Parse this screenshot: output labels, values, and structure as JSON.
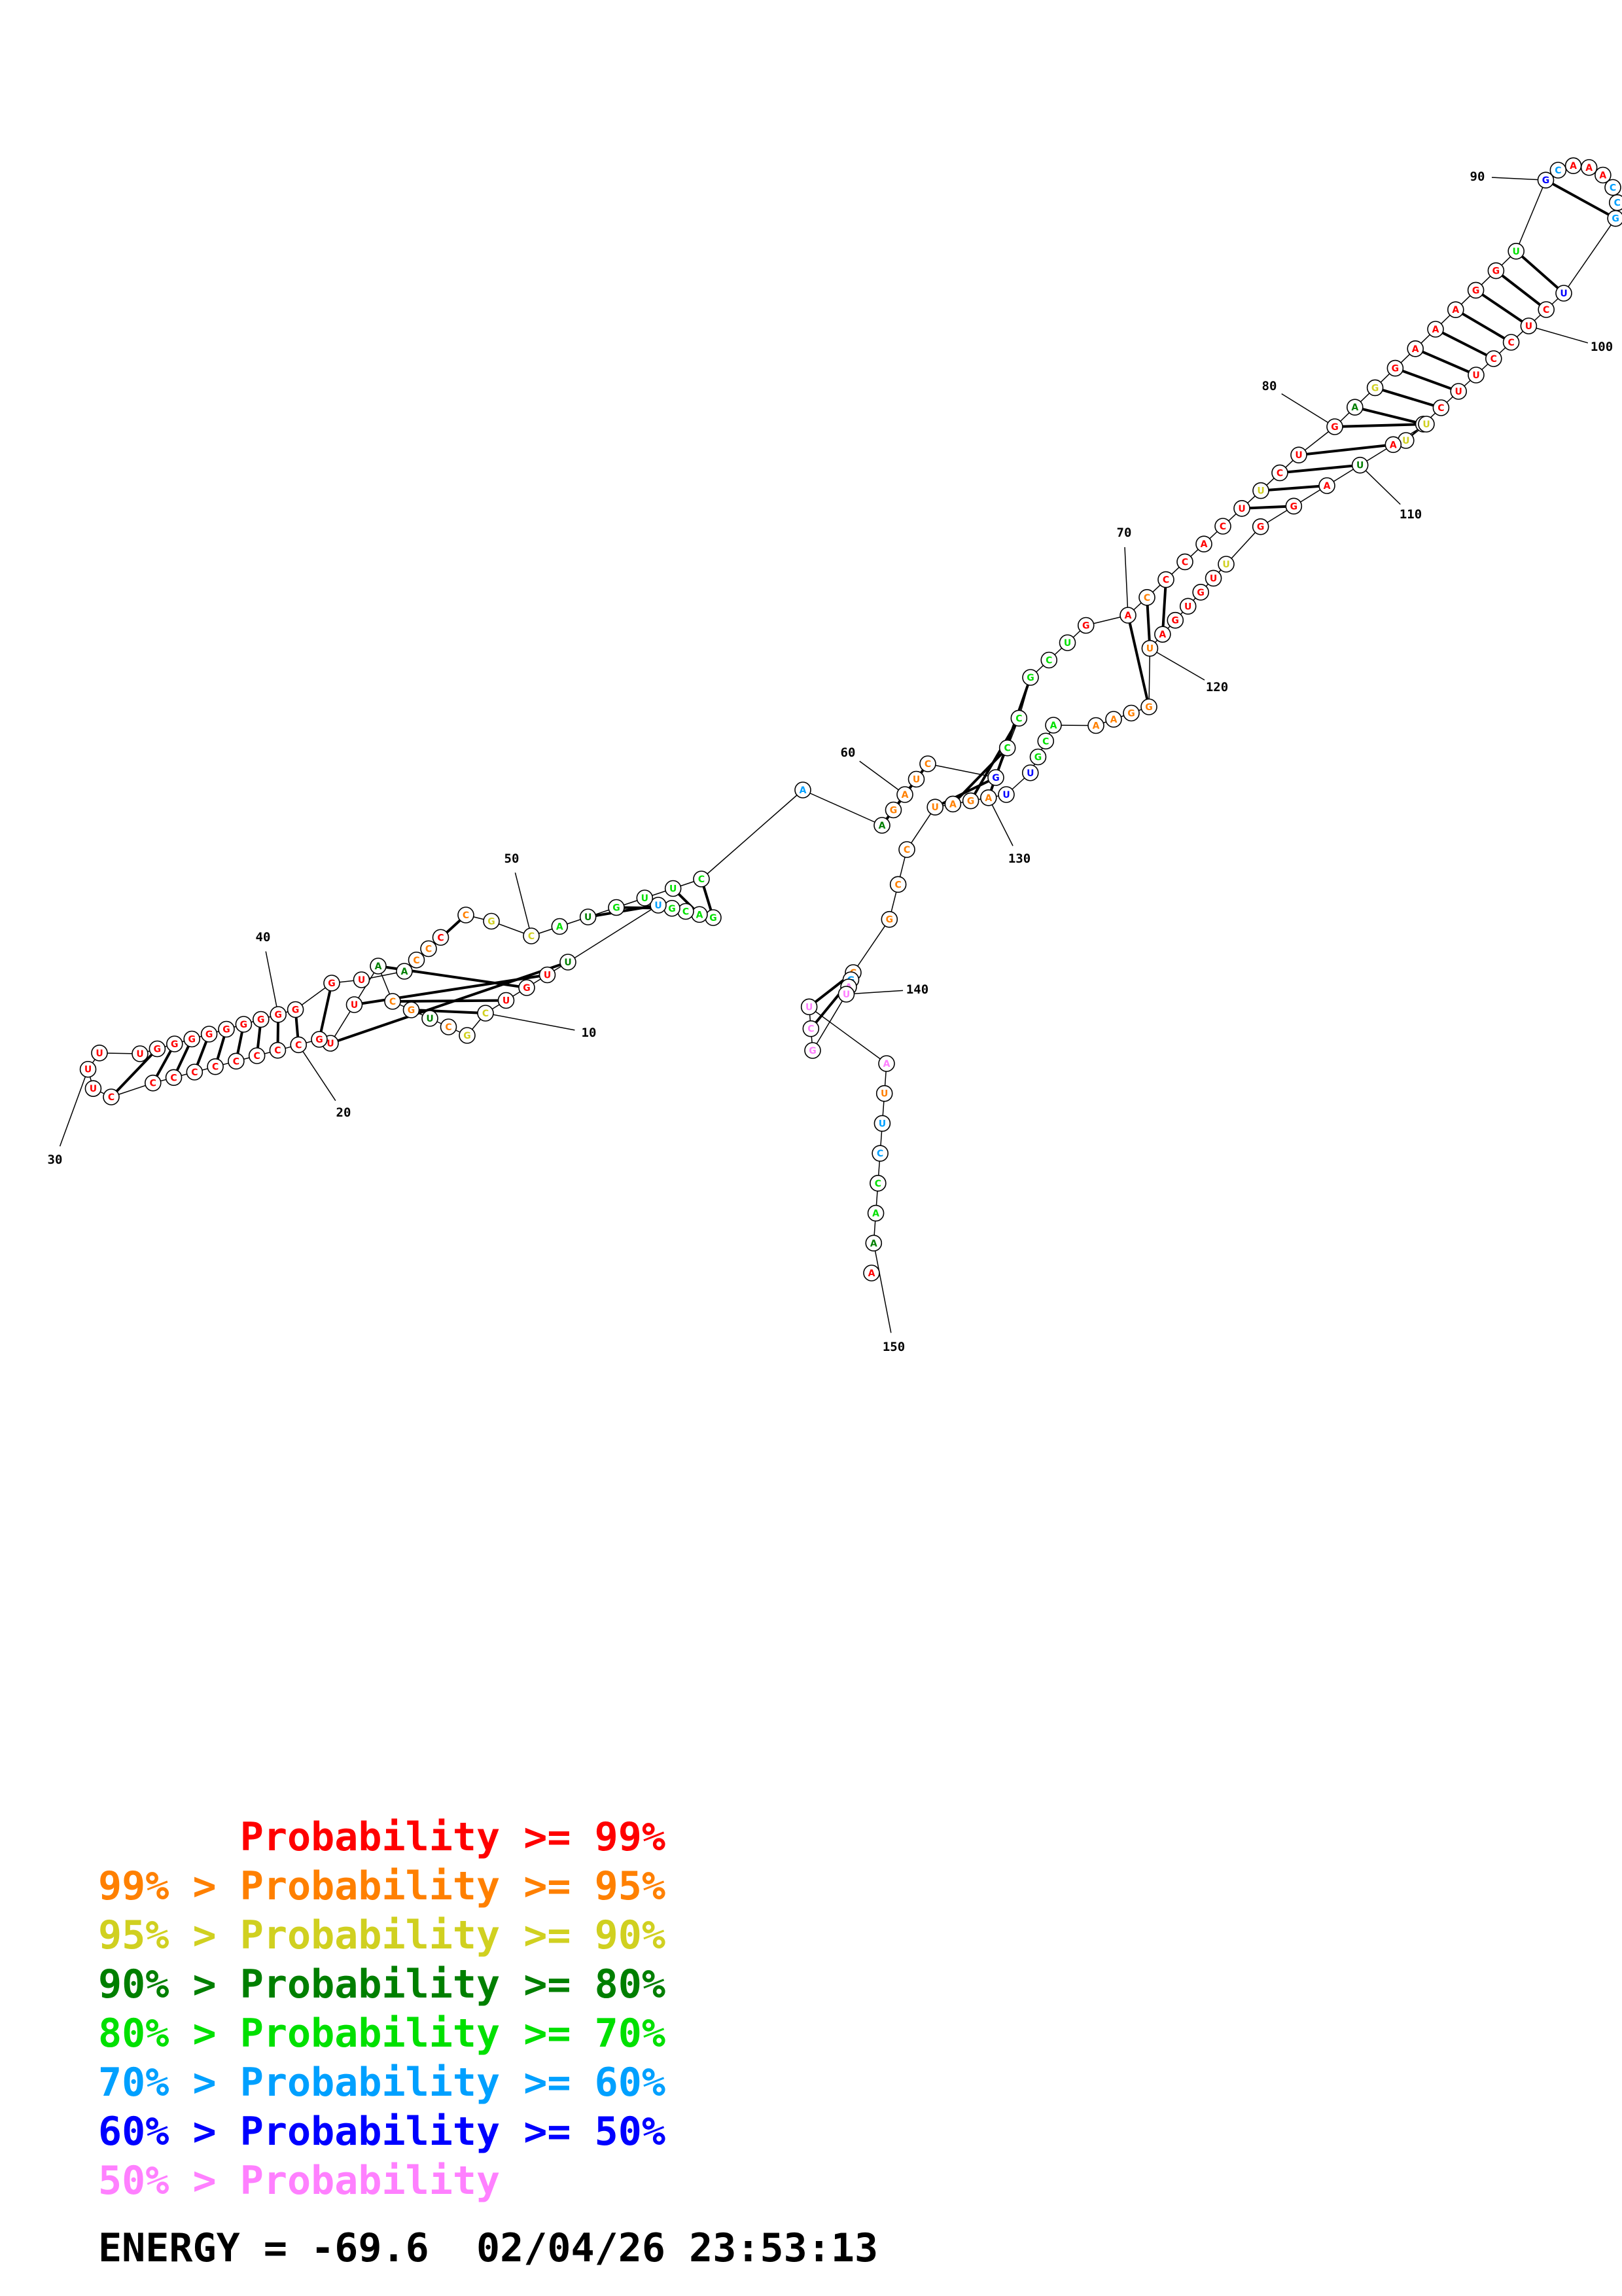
{
  "colors": {
    "p99": "#ff0000",
    "p95": "#ff8000",
    "p90": "#d0d020",
    "p80": "#007f00",
    "p70": "#00e000",
    "p60": "#00a0ff",
    "p50": "#0000ff",
    "plow": "#ff80ff"
  },
  "legend": [
    {
      "prefix": "",
      "label": "Probability",
      "suffix": ">= 99%",
      "color_key": "p99"
    },
    {
      "prefix": "99% >",
      "label": "Probability",
      "suffix": ">= 95%",
      "color_key": "p95"
    },
    {
      "prefix": "95% >",
      "label": "Probability",
      "suffix": ">= 90%",
      "color_key": "p90"
    },
    {
      "prefix": "90% >",
      "label": "Probability",
      "suffix": ">= 80%",
      "color_key": "p80"
    },
    {
      "prefix": "80% >",
      "label": "Probability",
      "suffix": ">= 70%",
      "color_key": "p70"
    },
    {
      "prefix": "70% >",
      "label": "Probability",
      "suffix": ">= 60%",
      "color_key": "p60"
    },
    {
      "prefix": "60% >",
      "label": "Probability",
      "suffix": ">= 50%",
      "color_key": "p50"
    },
    {
      "prefix": "50% >",
      "label": "Probability",
      "suffix": "",
      "color_key": "plow"
    }
  ],
  "energy_label": "ENERGY = -69.6",
  "timestamp": "02/04/26 23:53:13",
  "position_labels": [
    "10",
    "20",
    "30",
    "40",
    "50",
    "60",
    "70",
    "80",
    "90",
    "100",
    "110",
    "120",
    "130",
    "140",
    "150"
  ],
  "sequence": [
    [
      "G",
      "p70"
    ],
    [
      "A",
      "p70"
    ],
    [
      "C",
      "p70"
    ],
    [
      "G",
      "p70"
    ],
    [
      "U",
      "p60"
    ],
    [
      "U",
      "p80"
    ],
    [
      "U",
      "p99"
    ],
    [
      "G",
      "p99"
    ],
    [
      "U",
      "p99"
    ],
    [
      "C",
      "p90"
    ],
    [
      "G",
      "p90"
    ],
    [
      "C",
      "p95"
    ],
    [
      "U",
      "p80"
    ],
    [
      "G",
      "p95"
    ],
    [
      "C",
      "p95"
    ],
    [
      "A",
      "p80"
    ],
    [
      "U",
      "p99"
    ],
    [
      "U",
      "p99"
    ],
    [
      "G",
      "p99"
    ],
    [
      "C",
      "p99"
    ],
    [
      "C",
      "p99"
    ],
    [
      "C",
      "p99"
    ],
    [
      "C",
      "p99"
    ],
    [
      "C",
      "p99"
    ],
    [
      "C",
      "p99"
    ],
    [
      "C",
      "p99"
    ],
    [
      "C",
      "p99"
    ],
    [
      "C",
      "p99"
    ],
    [
      "U",
      "p99"
    ],
    [
      "U",
      "p99"
    ],
    [
      "U",
      "p99"
    ],
    [
      "U",
      "p99"
    ],
    [
      "G",
      "p99"
    ],
    [
      "G",
      "p99"
    ],
    [
      "G",
      "p99"
    ],
    [
      "G",
      "p99"
    ],
    [
      "G",
      "p99"
    ],
    [
      "G",
      "p99"
    ],
    [
      "G",
      "p99"
    ],
    [
      "G",
      "p99"
    ],
    [
      "G",
      "p99"
    ],
    [
      "G",
      "p99"
    ],
    [
      "U",
      "p99"
    ],
    [
      "A",
      "p80"
    ],
    [
      "C",
      "p95"
    ],
    [
      "C",
      "p95"
    ],
    [
      "C",
      "p99"
    ],
    [
      "C",
      "p95"
    ],
    [
      "G",
      "p90"
    ],
    [
      "C",
      "p90"
    ],
    [
      "A",
      "p70"
    ],
    [
      "U",
      "p80"
    ],
    [
      "G",
      "p70"
    ],
    [
      "U",
      "p70"
    ],
    [
      "U",
      "p70"
    ],
    [
      "C",
      "p70"
    ],
    [
      "A",
      "p60"
    ],
    [
      "A",
      "p80"
    ],
    [
      "G",
      "p95"
    ],
    [
      "A",
      "p95"
    ],
    [
      "U",
      "p95"
    ],
    [
      "C",
      "p95"
    ],
    [
      "G",
      "p50"
    ],
    [
      "C",
      "p70"
    ],
    [
      "C",
      "p70"
    ],
    [
      "G",
      "p70"
    ],
    [
      "C",
      "p70"
    ],
    [
      "U",
      "p70"
    ],
    [
      "G",
      "p99"
    ],
    [
      "A",
      "p99"
    ],
    [
      "C",
      "p95"
    ],
    [
      "C",
      "p99"
    ],
    [
      "C",
      "p99"
    ],
    [
      "A",
      "p99"
    ],
    [
      "C",
      "p99"
    ],
    [
      "U",
      "p99"
    ],
    [
      "U",
      "p90"
    ],
    [
      "C",
      "p99"
    ],
    [
      "U",
      "p99"
    ],
    [
      "G",
      "p99"
    ],
    [
      "A",
      "p80"
    ],
    [
      "G",
      "p90"
    ],
    [
      "G",
      "p99"
    ],
    [
      "A",
      "p99"
    ],
    [
      "A",
      "p99"
    ],
    [
      "A",
      "p99"
    ],
    [
      "G",
      "p99"
    ],
    [
      "G",
      "p99"
    ],
    [
      "U",
      "p70"
    ],
    [
      "G",
      "p50"
    ],
    [
      "C",
      "p60"
    ],
    [
      "A",
      "p99"
    ],
    [
      "A",
      "p99"
    ],
    [
      "A",
      "p99"
    ],
    [
      "C",
      "p60"
    ],
    [
      "C",
      "p60"
    ],
    [
      "G",
      "p60"
    ],
    [
      "U",
      "p50"
    ],
    [
      "C",
      "p99"
    ],
    [
      "U",
      "p99"
    ],
    [
      "C",
      "p99"
    ],
    [
      "C",
      "p99"
    ],
    [
      "U",
      "p99"
    ],
    [
      "U",
      "p99"
    ],
    [
      "C",
      "p99"
    ],
    [
      "C",
      "p99"
    ],
    [
      "U",
      "p90"
    ],
    [
      "U",
      "p90"
    ],
    [
      "A",
      "p99"
    ],
    [
      "U",
      "p80"
    ],
    [
      "A",
      "p99"
    ],
    [
      "G",
      "p99"
    ],
    [
      "G",
      "p99"
    ],
    [
      "U",
      "p90"
    ],
    [
      "U",
      "p99"
    ],
    [
      "G",
      "p99"
    ],
    [
      "U",
      "p99"
    ],
    [
      "G",
      "p99"
    ],
    [
      "A",
      "p99"
    ],
    [
      "U",
      "p95"
    ],
    [
      "G",
      "p95"
    ],
    [
      "G",
      "p95"
    ],
    [
      "A",
      "p95"
    ],
    [
      "A",
      "p95"
    ],
    [
      "A",
      "p70"
    ],
    [
      "C",
      "p70"
    ],
    [
      "G",
      "p70"
    ],
    [
      "U",
      "p50"
    ],
    [
      "U",
      "p50"
    ],
    [
      "A",
      "p95"
    ],
    [
      "G",
      "p95"
    ],
    [
      "A",
      "p95"
    ],
    [
      "U",
      "p95"
    ],
    [
      "C",
      "p95"
    ],
    [
      "C",
      "p95"
    ],
    [
      "G",
      "p95"
    ],
    [
      "C",
      "p95"
    ],
    [
      "G",
      "p60"
    ],
    [
      "A",
      "plow"
    ],
    [
      "U",
      "plow"
    ],
    [
      "G",
      "plow"
    ],
    [
      "C",
      "plow"
    ],
    [
      "U",
      "plow"
    ],
    [
      "A",
      "plow"
    ],
    [
      "U",
      "p95"
    ],
    [
      "U",
      "p60"
    ],
    [
      "C",
      "p60"
    ],
    [
      "C",
      "p70"
    ],
    [
      "A",
      "p70"
    ],
    [
      "A",
      "p80"
    ],
    [
      "A",
      "p99"
    ],
    [
      "G",
      "p99"
    ]
  ]
}
